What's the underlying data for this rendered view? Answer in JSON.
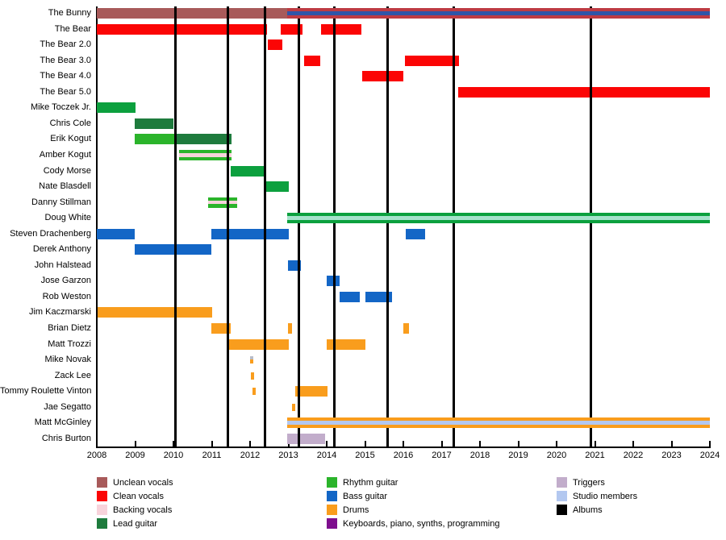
{
  "chart_data": {
    "type": "timeline",
    "title": "",
    "x_axis": {
      "start": 2008,
      "end": 2024,
      "tick_step": 1
    },
    "palette": {
      "unclean": "#A85A5A",
      "clean": "#FB0505",
      "backing": "#F8D3DB",
      "lead": "#1E7B3D",
      "rhythm": "#2BB42B",
      "greenmed": "#0CA03E",
      "bass": "#1366C6",
      "drums": "#F99D1D",
      "keys": "#7E0E8E",
      "triggers": "#C2ADCB",
      "studio": "#B3C8F0",
      "black": "#000000",
      "bunnyred": "#BE3B43",
      "stripeblue": "#2F55A8",
      "mint": "#A5E2CB",
      "dashgray": "#B9BDC9"
    },
    "albums_years": [
      2010.05,
      2011.43,
      2012.38,
      2013.28,
      2014.2,
      2015.59,
      2017.32,
      2020.9
    ],
    "members": [
      {
        "name": "The Bunny",
        "segments": [
          {
            "s": 2008.0,
            "e": 2012.97,
            "stripes": [
              [
                "unclean",
                1
              ]
            ]
          },
          {
            "s": 2012.97,
            "e": 2024.0,
            "front": true,
            "stripes": [
              [
                "bunnyred",
                4
              ],
              [
                "stripeblue",
                5
              ],
              [
                "bunnyred",
                4
              ]
            ]
          }
        ]
      },
      {
        "name": "The Bear",
        "segments": [
          {
            "s": 2008.0,
            "e": 2012.44,
            "stripes": [
              [
                "clean",
                1
              ]
            ]
          },
          {
            "s": 2012.8,
            "e": 2013.37,
            "stripes": [
              [
                "clean",
                1
              ]
            ]
          },
          {
            "s": 2013.85,
            "e": 2014.9,
            "stripes": [
              [
                "clean",
                1
              ]
            ]
          }
        ]
      },
      {
        "name": "The Bear 2.0",
        "segments": [
          {
            "s": 2012.46,
            "e": 2012.84,
            "stripes": [
              [
                "clean",
                1
              ]
            ]
          }
        ]
      },
      {
        "name": "The Bear 3.0",
        "segments": [
          {
            "s": 2013.41,
            "e": 2013.83,
            "stripes": [
              [
                "clean",
                1
              ]
            ]
          },
          {
            "s": 2016.04,
            "e": 2017.45,
            "stripes": [
              [
                "clean",
                1
              ]
            ]
          }
        ]
      },
      {
        "name": "The Bear 4.0",
        "segments": [
          {
            "s": 2014.93,
            "e": 2016.0,
            "stripes": [
              [
                "clean",
                1
              ]
            ]
          }
        ]
      },
      {
        "name": "The Bear 5.0",
        "segments": [
          {
            "s": 2017.43,
            "e": 2024.0,
            "stripes": [
              [
                "clean",
                1
              ]
            ]
          }
        ]
      },
      {
        "name": "Mike Toczek Jr.",
        "segments": [
          {
            "s": 2008.0,
            "e": 2009.01,
            "stripes": [
              [
                "greenmed",
                1
              ]
            ]
          }
        ]
      },
      {
        "name": "Chris Cole",
        "segments": [
          {
            "s": 2008.99,
            "e": 2010.0,
            "stripes": [
              [
                "lead",
                1
              ]
            ]
          }
        ]
      },
      {
        "name": "Erik Kogut",
        "segments": [
          {
            "s": 2008.99,
            "e": 2010.04,
            "stripes": [
              [
                "rhythm",
                1
              ]
            ]
          },
          {
            "s": 2010.04,
            "e": 2011.52,
            "stripes": [
              [
                "lead",
                1
              ]
            ]
          }
        ]
      },
      {
        "name": "Amber Kogut",
        "segments": [
          {
            "s": 2010.15,
            "e": 2011.52,
            "stripes": [
              [
                "rhythm",
                4
              ],
              [
                "backing",
                4
              ],
              [
                "rhythm",
                4
              ]
            ]
          }
        ]
      },
      {
        "name": "Cody Morse",
        "segments": [
          {
            "s": 2011.49,
            "e": 2012.42,
            "stripes": [
              [
                "greenmed",
                1
              ]
            ]
          }
        ]
      },
      {
        "name": "Nate Blasdell",
        "segments": [
          {
            "s": 2012.4,
            "e": 2013.01,
            "stripes": [
              [
                "greenmed",
                1
              ]
            ]
          }
        ]
      },
      {
        "name": "Danny Stillman",
        "segments": [
          {
            "s": 2010.91,
            "e": 2011.66,
            "stripes": [
              [
                "rhythm",
                4
              ],
              [
                "backing",
                4
              ],
              [
                "rhythm",
                4
              ]
            ]
          }
        ]
      },
      {
        "name": "Doug White",
        "segments": [
          {
            "s": 2012.97,
            "e": 2024.0,
            "front": true,
            "stripes": [
              [
                "greenmed",
                4
              ],
              [
                "mint",
                5
              ],
              [
                "greenmed",
                4
              ]
            ]
          }
        ]
      },
      {
        "name": "Steven Drachenberg",
        "segments": [
          {
            "s": 2008.0,
            "e": 2008.99,
            "stripes": [
              [
                "bass",
                1
              ]
            ]
          },
          {
            "s": 2010.99,
            "e": 2013.01,
            "stripes": [
              [
                "bass",
                1
              ]
            ]
          },
          {
            "s": 2016.06,
            "e": 2016.57,
            "stripes": [
              [
                "bass",
                1
              ]
            ]
          }
        ]
      },
      {
        "name": "Derek Anthony",
        "segments": [
          {
            "s": 2008.99,
            "e": 2010.99,
            "stripes": [
              [
                "bass",
                1
              ]
            ]
          }
        ]
      },
      {
        "name": "John Halstead",
        "segments": [
          {
            "s": 2012.99,
            "e": 2013.33,
            "stripes": [
              [
                "bass",
                1
              ]
            ]
          }
        ]
      },
      {
        "name": "Jose Garzon",
        "segments": [
          {
            "s": 2014.0,
            "e": 2014.34,
            "stripes": [
              [
                "bass",
                1
              ]
            ]
          }
        ]
      },
      {
        "name": "Rob Weston",
        "segments": [
          {
            "s": 2014.34,
            "e": 2014.86,
            "stripes": [
              [
                "bass",
                1
              ]
            ]
          },
          {
            "s": 2015.01,
            "e": 2015.71,
            "stripes": [
              [
                "bass",
                1
              ]
            ]
          }
        ]
      },
      {
        "name": "Jim Kaczmarski",
        "segments": [
          {
            "s": 2008.03,
            "e": 2011.01,
            "stripes": [
              [
                "drums",
                1
              ]
            ]
          }
        ]
      },
      {
        "name": "Brian Dietz",
        "segments": [
          {
            "s": 2010.99,
            "e": 2011.49,
            "stripes": [
              [
                "drums",
                1
              ]
            ]
          },
          {
            "s": 2012.99,
            "e": 2013.09,
            "stripes": [
              [
                "drums",
                1
              ]
            ]
          },
          {
            "s": 2016.0,
            "e": 2016.15,
            "stripes": [
              [
                "drums",
                1
              ]
            ]
          }
        ]
      },
      {
        "name": "Matt Trozzi",
        "segments": [
          {
            "s": 2011.45,
            "e": 2013.01,
            "stripes": [
              [
                "drums",
                1
              ]
            ]
          },
          {
            "s": 2014.0,
            "e": 2015.01,
            "stripes": [
              [
                "drums",
                1
              ]
            ]
          }
        ]
      },
      {
        "name": "Mike Novak",
        "segments": [
          {
            "s": 2012.0,
            "e": 2012.09,
            "dash": true,
            "stripes": [
              [
                "dashgray",
                4
              ],
              [
                "drums",
                5
              ]
            ]
          }
        ]
      },
      {
        "name": "Zack Lee",
        "segments": [
          {
            "s": 2012.02,
            "e": 2012.1,
            "dash": true,
            "stripes": [
              [
                "drums",
                1
              ]
            ]
          }
        ]
      },
      {
        "name": "Tommy Roulette Vinton",
        "segments": [
          {
            "s": 2012.06,
            "e": 2012.15,
            "dash": true,
            "stripes": [
              [
                "drums",
                1
              ]
            ]
          },
          {
            "s": 2013.18,
            "e": 2014.02,
            "stripes": [
              [
                "drums",
                1
              ]
            ]
          }
        ]
      },
      {
        "name": "Jae Segatto",
        "segments": [
          {
            "s": 2013.09,
            "e": 2013.18,
            "dash": true,
            "stripes": [
              [
                "drums",
                1
              ]
            ]
          }
        ]
      },
      {
        "name": "Matt McGinley",
        "segments": [
          {
            "s": 2012.97,
            "e": 2024.0,
            "front": true,
            "stripes": [
              [
                "drums",
                4
              ],
              [
                "studio",
                5
              ],
              [
                "drums",
                4
              ]
            ]
          }
        ]
      },
      {
        "name": "Chris Burton",
        "segments": [
          {
            "s": 2012.97,
            "e": 2013.96,
            "stripes": [
              [
                "triggers",
                1
              ]
            ]
          }
        ]
      }
    ],
    "legend_columns": [
      {
        "items": [
          {
            "label": "Unclean vocals",
            "color": "unclean"
          },
          {
            "label": "Clean vocals",
            "color": "clean"
          },
          {
            "label": "Backing vocals",
            "color": "backing"
          },
          {
            "label": "Lead guitar",
            "color": "lead"
          }
        ]
      },
      {
        "items": [
          {
            "label": "Rhythm guitar",
            "color": "rhythm"
          },
          {
            "label": "Bass guitar",
            "color": "bass"
          },
          {
            "label": "Drums",
            "color": "drums"
          },
          {
            "label": "Keyboards, piano, synths, programming",
            "color": "keys"
          }
        ]
      },
      {
        "items": [
          {
            "label": "Triggers",
            "color": "triggers"
          },
          {
            "label": "Studio members",
            "color": "studio"
          },
          {
            "label": "Albums",
            "color": "black"
          }
        ]
      }
    ]
  }
}
